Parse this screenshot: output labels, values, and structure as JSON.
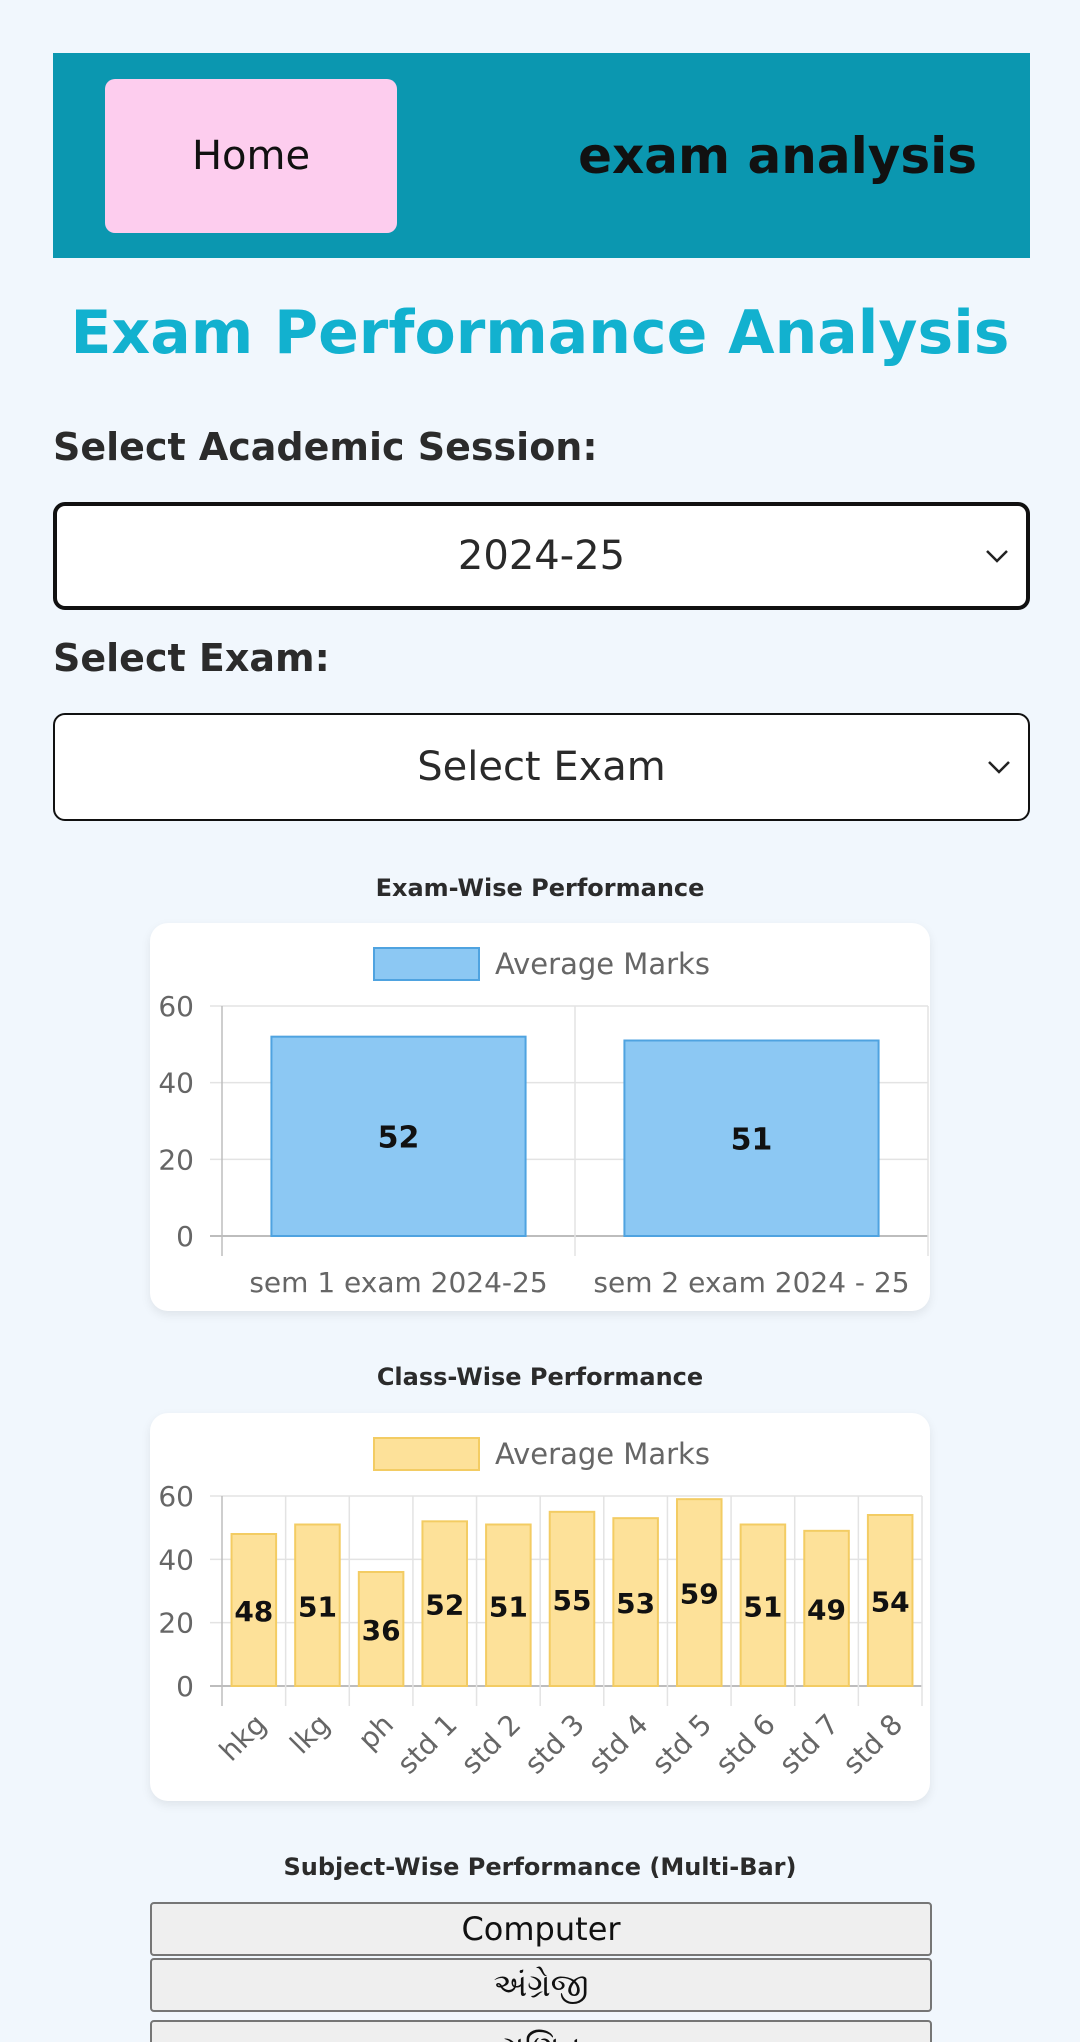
{
  "header": {
    "home_label": "Home",
    "brand": "exam analysis",
    "background": "#0b97b0",
    "home_bg": "#fdcdee"
  },
  "page_title": "Exam Performance Analysis",
  "session": {
    "label": "Select Academic Session:",
    "selected": "2024-25"
  },
  "exam": {
    "label": "Select Exam:",
    "selected": "Select Exam"
  },
  "sections": {
    "exam_wise": "Exam-Wise Performance",
    "class_wise": "Class-Wise Performance",
    "subject_wise": "Subject-Wise Performance (Multi-Bar)"
  },
  "subjects": [
    "Computer",
    "અંગ્રેજી",
    "ગણિત"
  ],
  "chart_data": [
    {
      "type": "bar",
      "title": "Exam-Wise Performance",
      "categories": [
        "sem 1 exam 2024-25",
        "sem 2 exam  2024 - 25"
      ],
      "series": [
        {
          "name": "Average Marks",
          "values": [
            52,
            51
          ],
          "color": "#8cc8f3",
          "border": "#4fa3e0"
        }
      ],
      "data_labels": [
        "52",
        "51"
      ],
      "ylim": [
        0,
        60
      ],
      "yticks": [
        0,
        20,
        40,
        60
      ],
      "legend": "top",
      "grid": true
    },
    {
      "type": "bar",
      "title": "Class-Wise Performance",
      "categories": [
        "hkg",
        "lkg",
        "ph",
        "std 1",
        "std 2",
        "std 3",
        "std 4",
        "std 5",
        "std 6",
        "std 7",
        "std 8"
      ],
      "series": [
        {
          "name": "Average Marks",
          "values": [
            48,
            51,
            36,
            52,
            51,
            55,
            53,
            59,
            51,
            49,
            54
          ],
          "color": "#fde199",
          "border": "#f3cc63"
        }
      ],
      "data_labels": [
        "48",
        "51",
        "36",
        "52",
        "51",
        "55",
        "53",
        "59",
        "51",
        "49",
        "54"
      ],
      "ylim": [
        0,
        60
      ],
      "yticks": [
        0,
        20,
        40,
        60
      ],
      "legend": "top",
      "grid": true
    }
  ]
}
